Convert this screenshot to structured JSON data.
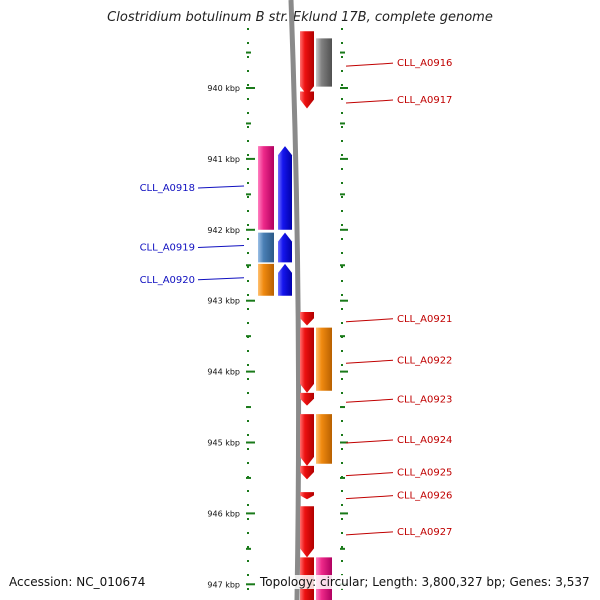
{
  "title": "Clostridium botulinum B str. Eklund 17B, complete genome",
  "footer": {
    "accession": "Accession: NC_010674",
    "topology": "Topology: circular; Length: 3,800,327 bp; Genes: 3,537"
  },
  "colors": {
    "ruler": "#1a7a1a",
    "backbone": "#888888",
    "left_label": "#1010c0",
    "right_label": "#c00000",
    "red": "#ee1111",
    "blue": "#1515ee",
    "pink": "#ee2a8a",
    "steelblue": "#4a7fb5",
    "orange": "#f08a10",
    "grey": "#777777"
  },
  "kbp_ticks": [
    "940 kbp",
    "941 kbp",
    "942 kbp",
    "943 kbp",
    "944 kbp",
    "945 kbp",
    "946 kbp",
    "947 kbp"
  ],
  "tick_positions_kbp": [
    940,
    941,
    942,
    943,
    944,
    945,
    946,
    947
  ],
  "genes": [
    {
      "label": "CLL_A0916",
      "side": "right",
      "start_kbp": 939.2,
      "end_kbp": 940.1,
      "color": "red",
      "strand": "down",
      "lane": "inner"
    },
    {
      "label": "",
      "side": "right",
      "start_kbp": 939.3,
      "end_kbp": 939.98,
      "color": "grey",
      "strand": "none",
      "lane": "outer"
    },
    {
      "label": "CLL_A0917",
      "side": "right",
      "start_kbp": 940.05,
      "end_kbp": 940.29,
      "color": "red",
      "strand": "down",
      "lane": "inner"
    },
    {
      "label": "CLL_A0918",
      "side": "left",
      "start_kbp": 940.82,
      "end_kbp": 942.0,
      "color": "pink",
      "strand": "none",
      "lane": "outer"
    },
    {
      "label": "",
      "side": "left",
      "start_kbp": 940.82,
      "end_kbp": 942.0,
      "color": "blue",
      "strand": "up",
      "lane": "inner"
    },
    {
      "label": "CLL_A0919",
      "side": "left",
      "start_kbp": 942.04,
      "end_kbp": 942.46,
      "color": "steelblue",
      "strand": "none",
      "lane": "outer"
    },
    {
      "label": "",
      "side": "left",
      "start_kbp": 942.04,
      "end_kbp": 942.46,
      "color": "blue",
      "strand": "up",
      "lane": "inner"
    },
    {
      "label": "CLL_A0920",
      "side": "left",
      "start_kbp": 942.48,
      "end_kbp": 942.93,
      "color": "orange",
      "strand": "none",
      "lane": "outer"
    },
    {
      "label": "",
      "side": "left",
      "start_kbp": 942.48,
      "end_kbp": 942.93,
      "color": "blue",
      "strand": "up",
      "lane": "inner"
    },
    {
      "label": "CLL_A0921",
      "side": "right",
      "start_kbp": 943.16,
      "end_kbp": 943.35,
      "color": "red",
      "strand": "down",
      "lane": "inner"
    },
    {
      "label": "CLL_A0922",
      "side": "right",
      "start_kbp": 943.38,
      "end_kbp": 944.3,
      "color": "red",
      "strand": "down",
      "lane": "inner"
    },
    {
      "label": "",
      "side": "right",
      "start_kbp": 943.38,
      "end_kbp": 944.27,
      "color": "orange",
      "strand": "none",
      "lane": "outer"
    },
    {
      "label": "CLL_A0923",
      "side": "right",
      "start_kbp": 944.3,
      "end_kbp": 944.48,
      "color": "red",
      "strand": "down",
      "lane": "inner"
    },
    {
      "label": "CLL_A0924",
      "side": "right",
      "start_kbp": 944.6,
      "end_kbp": 945.33,
      "color": "red",
      "strand": "down",
      "lane": "inner"
    },
    {
      "label": "",
      "side": "right",
      "start_kbp": 944.6,
      "end_kbp": 945.3,
      "color": "orange",
      "strand": "none",
      "lane": "outer"
    },
    {
      "label": "CLL_A0925",
      "side": "right",
      "start_kbp": 945.33,
      "end_kbp": 945.52,
      "color": "red",
      "strand": "down",
      "lane": "inner"
    },
    {
      "label": "CLL_A0926",
      "side": "right",
      "start_kbp": 945.7,
      "end_kbp": 945.8,
      "color": "red",
      "strand": "down",
      "lane": "inner"
    },
    {
      "label": "CLL_A0927",
      "side": "right",
      "start_kbp": 945.9,
      "end_kbp": 946.62,
      "color": "red",
      "strand": "down",
      "lane": "inner"
    },
    {
      "label": "",
      "side": "right",
      "start_kbp": 946.62,
      "end_kbp": 947.3,
      "color": "red",
      "strand": "none",
      "lane": "inner"
    },
    {
      "label": "",
      "side": "right",
      "start_kbp": 946.62,
      "end_kbp": 947.3,
      "color": "pink",
      "strand": "none",
      "lane": "outer"
    }
  ]
}
